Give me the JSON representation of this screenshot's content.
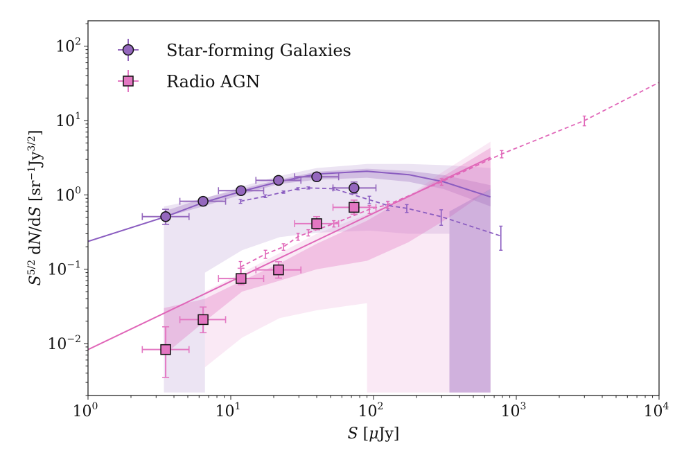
{
  "chart_data": {
    "type": "scatter",
    "title": "",
    "xlabel": "S [μJy]",
    "ylabel": "S^{5/2} dN/dS [sr^{-1} Jy^{3/2}]",
    "xscale": "log",
    "yscale": "log",
    "xlim": [
      1,
      10000
    ],
    "ylim": [
      0.002,
      220
    ],
    "xticks": [
      {
        "value": 1,
        "base": "10",
        "exp": "0"
      },
      {
        "value": 10,
        "base": "10",
        "exp": "1"
      },
      {
        "value": 100,
        "base": "10",
        "exp": "2"
      },
      {
        "value": 1000,
        "base": "10",
        "exp": "3"
      },
      {
        "value": 10000,
        "base": "10",
        "exp": "4"
      }
    ],
    "yticks": [
      {
        "value": 0.01,
        "base": "10",
        "exp": "−2"
      },
      {
        "value": 0.1,
        "base": "10",
        "exp": "−1"
      },
      {
        "value": 1,
        "base": "10",
        "exp": "0"
      },
      {
        "value": 10,
        "base": "10",
        "exp": "1"
      },
      {
        "value": 100,
        "base": "10",
        "exp": "2"
      }
    ],
    "grid": false,
    "legend": {
      "placement": "top-left",
      "entries": [
        {
          "label": "Star-forming Galaxies",
          "marker": "circle",
          "color": "#9467bd"
        },
        {
          "label": "Radio AGN",
          "marker": "square",
          "color": "#e377c2"
        }
      ]
    },
    "colors": {
      "sfg": "#8a5cc0",
      "sfg_fill": "#9467bd",
      "agn": "#e066b8",
      "agn_fill": "#e377c2",
      "marker_edge": "#111111"
    },
    "series": [
      {
        "name": "Star-forming Galaxies",
        "kind": "points",
        "marker": "circle",
        "x": [
          3.5,
          6.4,
          11.8,
          21.6,
          40,
          73
        ],
        "y": [
          0.51,
          0.82,
          1.14,
          1.57,
          1.75,
          1.24
        ],
        "xerr_low": [
          1.1,
          2.0,
          3.6,
          6.6,
          12,
          21
        ],
        "xerr_high": [
          1.6,
          2.8,
          5.2,
          9.4,
          17,
          31
        ],
        "yerr_low": [
          0.11,
          0.1,
          0.1,
          0.12,
          0.15,
          0.2
        ],
        "yerr_high": [
          0.13,
          0.1,
          0.1,
          0.13,
          0.18,
          0.25
        ]
      },
      {
        "name": "Radio AGN",
        "kind": "points",
        "marker": "square",
        "x": [
          3.5,
          6.4,
          11.8,
          21.6,
          40,
          73
        ],
        "y": [
          0.0083,
          0.021,
          0.075,
          0.098,
          0.41,
          0.68
        ],
        "xerr_low": [
          1.1,
          2.0,
          3.6,
          6.6,
          12,
          21
        ],
        "xerr_high": [
          1.6,
          2.8,
          5.2,
          9.4,
          17,
          31
        ],
        "yerr_low": [
          0.0048,
          0.007,
          0.013,
          0.022,
          0.07,
          0.13
        ],
        "yerr_high": [
          0.0085,
          0.01,
          0.028,
          0.028,
          0.1,
          0.17
        ]
      },
      {
        "name": "Star-forming Galaxies model",
        "kind": "line",
        "style": "solid",
        "x": [
          1.0,
          3.5,
          6.4,
          11.8,
          21.6,
          40,
          90,
          177,
          310,
          660
        ],
        "y": [
          0.237,
          0.51,
          0.79,
          1.11,
          1.5,
          1.91,
          2.08,
          1.87,
          1.5,
          0.94
        ]
      },
      {
        "name": "Radio AGN model",
        "kind": "line",
        "style": "solid",
        "x": [
          1.0,
          660
        ],
        "y": [
          0.0083,
          3.2
        ]
      },
      {
        "name": "Star-forming Galaxies reference",
        "kind": "line",
        "style": "dashed",
        "x": [
          11.7,
          17.5,
          23.4,
          29.6,
          34.9,
          52.7,
          93.5,
          126,
          171,
          298,
          780
        ],
        "y": [
          0.82,
          0.96,
          1.09,
          1.21,
          1.24,
          1.21,
          0.86,
          0.72,
          0.66,
          0.51,
          0.28
        ],
        "yerr": [
          0.05,
          0.04,
          0.04,
          0.04,
          0.04,
          0.05,
          0.1,
          0.1,
          0.08,
          0.12,
          0.1
        ]
      },
      {
        "name": "Radio AGN reference",
        "kind": "line",
        "style": "dashed",
        "x": [
          11.7,
          17.5,
          23.4,
          29.6,
          34.9,
          52.7,
          93.5,
          126,
          300,
          790,
          3000,
          10000
        ],
        "y": [
          0.107,
          0.16,
          0.2,
          0.275,
          0.31,
          0.41,
          0.64,
          0.74,
          1.5,
          3.55,
          10,
          32.6
        ],
        "yerr": [
          0.02,
          0.02,
          0.02,
          0.03,
          0.03,
          0.04,
          0.08,
          0.08,
          0.15,
          0.4,
          1.5,
          0
        ]
      }
    ],
    "bands": [
      {
        "name": "SFG outer region",
        "color": "#9467bd",
        "opacity": 0.18,
        "x": [
          3.4,
          6.6,
          6.6,
          12,
          22,
          40,
          90,
          95,
          175,
          340,
          340,
          660,
          660,
          340,
          175,
          90,
          40,
          22,
          12,
          6.6,
          3.4
        ],
        "y": [
          0.0022,
          0.0022,
          0.09,
          0.18,
          0.27,
          0.31,
          0.33,
          0.33,
          0.3,
          0.3,
          0.0022,
          0.0022,
          2.3,
          2.5,
          2.6,
          2.6,
          2.3,
          1.8,
          1.3,
          0.9,
          0.7
        ]
      },
      {
        "name": "SFG inner band",
        "color": "#9467bd",
        "opacity": 0.3,
        "x": [
          3.4,
          6.4,
          11.8,
          21.6,
          40,
          90,
          177,
          310,
          660,
          660,
          310,
          177,
          90,
          40,
          21.6,
          11.8,
          6.4,
          3.4
        ],
        "y": [
          0.6,
          0.9,
          1.2,
          1.6,
          2.05,
          2.25,
          2.1,
          1.85,
          1.35,
          0.7,
          1.2,
          1.5,
          1.7,
          1.6,
          1.4,
          1.0,
          0.7,
          0.5
        ]
      },
      {
        "name": "AGN outer region",
        "color": "#e377c2",
        "opacity": 0.16,
        "x": [
          6.6,
          12,
          22,
          40,
          90,
          90,
          660,
          660,
          300,
          180,
          90,
          40,
          20,
          10,
          6.6
        ],
        "y": [
          0.0048,
          0.012,
          0.022,
          0.028,
          0.035,
          0.0022,
          0.0022,
          5.2,
          2.0,
          1.0,
          0.55,
          0.3,
          0.15,
          0.075,
          0.05
        ]
      },
      {
        "name": "AGN inner band",
        "color": "#e377c2",
        "opacity": 0.35,
        "x": [
          3.4,
          6.6,
          12,
          22,
          40,
          90,
          175,
          340,
          660,
          660,
          340,
          175,
          90,
          40,
          22,
          12,
          6.6,
          3.4
        ],
        "y": [
          0.007,
          0.02,
          0.05,
          0.07,
          0.1,
          0.13,
          0.23,
          0.5,
          1.2,
          4.3,
          2.0,
          0.95,
          0.45,
          0.22,
          0.12,
          0.07,
          0.04,
          0.03
        ]
      },
      {
        "name": "SFG right column",
        "color": "#9467bd",
        "opacity": 0.3,
        "x": [
          340,
          660,
          660,
          340
        ],
        "y": [
          0.0022,
          0.0022,
          1.2,
          0.6
        ]
      }
    ]
  }
}
